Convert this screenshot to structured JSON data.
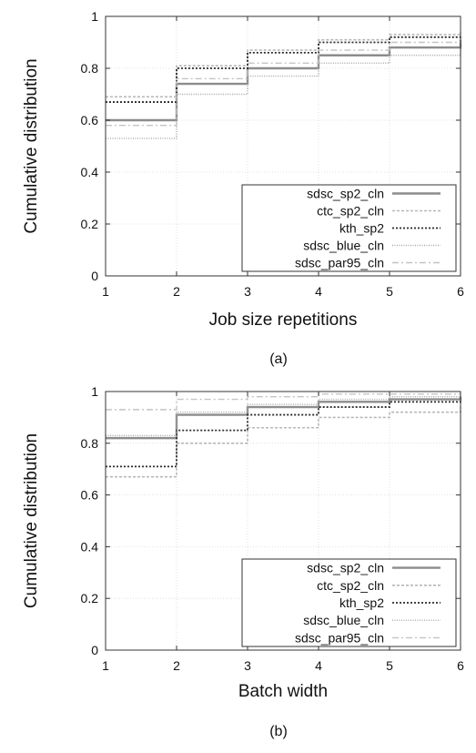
{
  "chart_data": [
    {
      "type": "line",
      "step": true,
      "caption": "(a)",
      "xlabel": "Job size repetitions",
      "ylabel": "Cumulative distribution",
      "xlim": [
        1,
        6
      ],
      "ylim": [
        0,
        1
      ],
      "xticks": [
        "1",
        "2",
        "3",
        "4",
        "5",
        "6"
      ],
      "yticks": [
        "0",
        "0.2",
        "0.4",
        "0.6",
        "0.8",
        "1"
      ],
      "grid": true,
      "legend": "bottom-right",
      "x": [
        1,
        2,
        3,
        4,
        5,
        6
      ],
      "series": [
        {
          "name": "sdsc_sp2_cln",
          "values": [
            0.6,
            0.74,
            0.8,
            0.85,
            0.88,
            0.91
          ]
        },
        {
          "name": "ctc_sp2_cln",
          "values": [
            0.69,
            0.81,
            0.87,
            0.91,
            0.93,
            0.94
          ]
        },
        {
          "name": "kth_sp2",
          "values": [
            0.67,
            0.8,
            0.86,
            0.9,
            0.92,
            0.93
          ]
        },
        {
          "name": "sdsc_blue_cln",
          "values": [
            0.53,
            0.7,
            0.77,
            0.82,
            0.85,
            0.88
          ]
        },
        {
          "name": "sdsc_par95_cln",
          "values": [
            0.58,
            0.76,
            0.82,
            0.87,
            0.9,
            0.92
          ]
        }
      ]
    },
    {
      "type": "line",
      "step": true,
      "caption": "(b)",
      "xlabel": "Batch width",
      "ylabel": "Cumulative distribution",
      "xlim": [
        1,
        6
      ],
      "ylim": [
        0,
        1
      ],
      "xticks": [
        "1",
        "2",
        "3",
        "4",
        "5",
        "6"
      ],
      "yticks": [
        "0",
        "0.2",
        "0.4",
        "0.6",
        "0.8",
        "1"
      ],
      "grid": true,
      "legend": "bottom-right",
      "x": [
        1,
        2,
        3,
        4,
        5,
        6
      ],
      "series": [
        {
          "name": "sdsc_sp2_cln",
          "values": [
            0.82,
            0.91,
            0.94,
            0.96,
            0.97,
            0.98
          ]
        },
        {
          "name": "ctc_sp2_cln",
          "values": [
            0.67,
            0.8,
            0.86,
            0.9,
            0.92,
            0.94
          ]
        },
        {
          "name": "kth_sp2",
          "values": [
            0.71,
            0.85,
            0.91,
            0.94,
            0.96,
            0.97
          ]
        },
        {
          "name": "sdsc_blue_cln",
          "values": [
            0.83,
            0.92,
            0.95,
            0.97,
            0.98,
            0.98
          ]
        },
        {
          "name": "sdsc_par95_cln",
          "values": [
            0.93,
            0.97,
            0.98,
            0.99,
            0.99,
            0.99
          ]
        }
      ]
    }
  ],
  "styles": [
    {
      "color": "#8c8c8c",
      "width": 2.4,
      "dash": ""
    },
    {
      "color": "#b8b8b8",
      "width": 1.6,
      "dash": "3,2"
    },
    {
      "color": "#2b2b2b",
      "width": 1.8,
      "dash": "2,2"
    },
    {
      "color": "#a6a6a6",
      "width": 1.4,
      "dash": "1,1.5"
    },
    {
      "color": "#c4c4c4",
      "width": 1.4,
      "dash": "7,3,2,3"
    }
  ],
  "colors": {
    "grid": "#d9d9d9",
    "axis": "#333333",
    "text": "#111111"
  }
}
